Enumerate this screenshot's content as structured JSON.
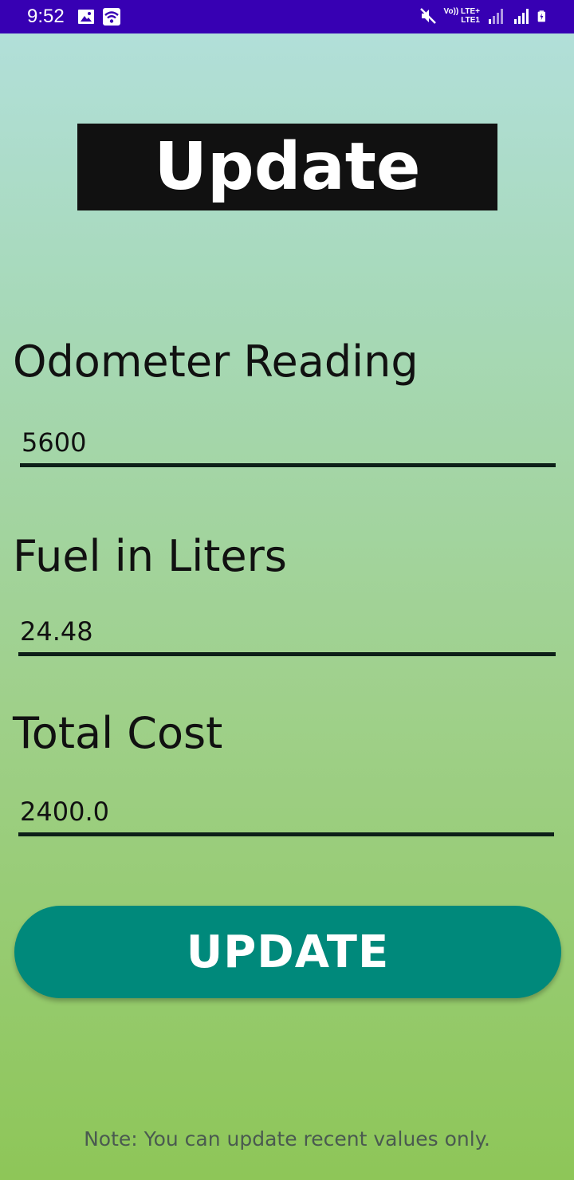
{
  "status_bar": {
    "time": "9:52",
    "network_top": "Vo)) LTE+",
    "network_bottom": "LTE1",
    "background_color": "#3700b3",
    "left_icons": [
      "image-icon",
      "wifi-icon"
    ],
    "right_icons": [
      "mute-icon",
      "signal-icon",
      "signal-icon",
      "battery-icon"
    ]
  },
  "header": {
    "title": "Update"
  },
  "form": {
    "odometer": {
      "label": "Odometer Reading",
      "value": "5600"
    },
    "fuel": {
      "label": "Fuel in Liters",
      "value": "24.48"
    },
    "cost": {
      "label": "Total Cost",
      "value": "2400.0"
    }
  },
  "update_button": {
    "label": "UPDATE",
    "color": "#00897b"
  },
  "footer": {
    "note": "Note: You can update recent values only."
  }
}
